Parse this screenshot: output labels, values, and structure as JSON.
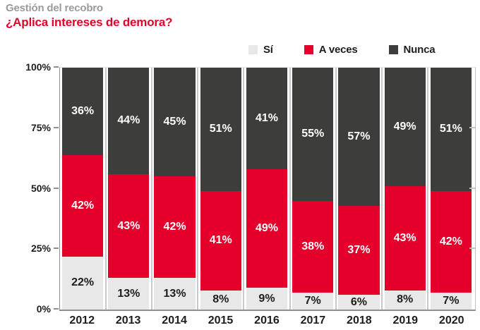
{
  "header": {
    "title": "Gestión del recobro",
    "subtitle": "¿Aplica intereses de demora?"
  },
  "colors": {
    "title_gray": "#9c9b9b",
    "accent_red": "#e4002b",
    "dark_gray": "#3d3d3c",
    "light_gray": "#e8e8e8",
    "text_dark": "#1d1d1b"
  },
  "chart_data": {
    "type": "bar",
    "stacked": true,
    "title": "Gestión del recobro",
    "subtitle": "¿Aplica intereses de demora?",
    "categories": [
      "2012",
      "2013",
      "2014",
      "2015",
      "2016",
      "2017",
      "2018",
      "2019",
      "2020"
    ],
    "series": [
      {
        "name": "Sí",
        "color": "#e8e8e8",
        "text_color": "#1d1d1b",
        "values": [
          22,
          13,
          13,
          8,
          9,
          7,
          6,
          8,
          7
        ]
      },
      {
        "name": "A veces",
        "color": "#e4002b",
        "text_color": "#ffffff",
        "values": [
          42,
          43,
          42,
          41,
          49,
          38,
          37,
          43,
          42
        ]
      },
      {
        "name": "Nunca",
        "color": "#3d3d3c",
        "text_color": "#ffffff",
        "values": [
          36,
          44,
          45,
          51,
          41,
          55,
          57,
          49,
          51
        ]
      }
    ],
    "y_ticks": [
      "0%",
      "25%",
      "50%",
      "75%",
      "100%"
    ],
    "ylim": [
      0,
      100
    ],
    "value_suffix": "%",
    "xlabel": "",
    "ylabel": "",
    "grid": false,
    "legend_position": "top-right"
  }
}
